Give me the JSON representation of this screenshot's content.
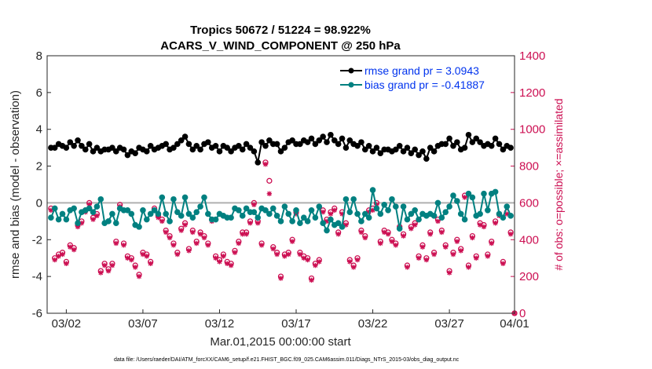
{
  "chart_data": {
    "type": "line",
    "title_line1": "Tropics 50672 / 51224 = 98.922%",
    "title_line2": "ACARS_V_WIND_COMPONENT @ 250 hPa",
    "xlabel": "Mar.01,2015 00:00:00 start",
    "ylabel": "rmse and bias (model - observation)",
    "y2label": "# of obs: o=possible; ×=assimilated",
    "footer": "data file: /Users/raeder/DAI/ATM_forcXX/CAM6_setup/f.e21.FHIST_BGC.f09_025.CAM6assim.011/Diags_NTrS_2015-03/obs_diag_output.nc",
    "xlim": [
      0.75,
      31.25
    ],
    "ylim": [
      -6,
      8
    ],
    "y2lim": [
      0,
      1400
    ],
    "x_ticks": [
      2,
      7,
      12,
      17,
      22,
      27,
      32
    ],
    "x_tick_labels": [
      "03/02",
      "03/07",
      "03/12",
      "03/17",
      "03/22",
      "03/27",
      "04/01"
    ],
    "y_ticks": [
      -6,
      -4,
      -2,
      0,
      2,
      4,
      6,
      8
    ],
    "y_tick_labels": [
      "-6",
      "-4",
      "-2",
      "0",
      "2",
      "4",
      "6",
      "8"
    ],
    "y2_ticks": [
      0,
      200,
      400,
      600,
      800,
      1000,
      1200,
      1400
    ],
    "y2_tick_labels": [
      "0",
      "200",
      "400",
      "600",
      "800",
      "1000",
      "1200",
      "1400"
    ],
    "zero_line": 0,
    "colors": {
      "rmse": "#000000",
      "bias": "#008080",
      "obs": "#cc0f52",
      "zero": "#b0b0b0",
      "legend_text": "#0033ee"
    },
    "legend": [
      {
        "name": "rmse grand pr = 3.0943",
        "series": "rmse"
      },
      {
        "name": "bias grand pr = -0.41887",
        "series": "bias"
      }
    ],
    "x": [
      1.0,
      1.25,
      1.5,
      1.75,
      2.0,
      2.25,
      2.5,
      2.75,
      3.0,
      3.25,
      3.5,
      3.75,
      4.0,
      4.25,
      4.5,
      4.75,
      5.0,
      5.25,
      5.5,
      5.75,
      6.0,
      6.25,
      6.5,
      6.75,
      7.0,
      7.25,
      7.5,
      7.75,
      8.0,
      8.25,
      8.5,
      8.75,
      9.0,
      9.25,
      9.5,
      9.75,
      10.0,
      10.25,
      10.5,
      10.75,
      11.0,
      11.25,
      11.5,
      11.75,
      12.0,
      12.25,
      12.5,
      12.75,
      13.0,
      13.25,
      13.5,
      13.75,
      14.0,
      14.25,
      14.5,
      14.75,
      15.0,
      15.25,
      15.5,
      15.75,
      16.0,
      16.25,
      16.5,
      16.75,
      17.0,
      17.25,
      17.5,
      17.75,
      18.0,
      18.25,
      18.5,
      18.75,
      19.0,
      19.25,
      19.5,
      19.75,
      20.0,
      20.25,
      20.5,
      20.75,
      21.0,
      21.25,
      21.5,
      21.75,
      22.0,
      22.25,
      22.5,
      22.75,
      23.0,
      23.25,
      23.5,
      23.75,
      24.0,
      24.25,
      24.5,
      24.75,
      25.0,
      25.25,
      25.5,
      25.75,
      26.0,
      26.25,
      26.5,
      26.75,
      27.0,
      27.25,
      27.5,
      27.75,
      28.0,
      28.25,
      28.5,
      28.75,
      29.0,
      29.25,
      29.5,
      29.75,
      30.0,
      30.25,
      30.5,
      30.75,
      31.0
    ],
    "series": [
      {
        "name": "rmse",
        "values": [
          3.0,
          3.0,
          3.2,
          3.1,
          3.0,
          3.3,
          3.1,
          3.4,
          3.1,
          2.9,
          3.2,
          2.8,
          3.0,
          2.8,
          2.9,
          2.9,
          3.0,
          2.8,
          3.0,
          2.9,
          2.6,
          2.8,
          2.7,
          3.0,
          2.9,
          2.8,
          3.1,
          2.9,
          3.0,
          3.1,
          3.2,
          2.9,
          3.0,
          3.2,
          3.4,
          3.6,
          3.2,
          2.9,
          3.1,
          2.9,
          3.2,
          3.3,
          3.0,
          3.1,
          2.8,
          3.1,
          3.0,
          2.8,
          3.0,
          3.1,
          2.9,
          3.2,
          3.0,
          2.8,
          2.2,
          3.3,
          3.1,
          3.4,
          3.2,
          3.2,
          2.8,
          3.0,
          3.3,
          3.4,
          3.2,
          3.2,
          3.4,
          3.3,
          3.5,
          3.2,
          3.4,
          3.6,
          3.3,
          3.7,
          3.4,
          3.2,
          3.5,
          3.0,
          3.4,
          3.2,
          3.1,
          3.3,
          2.9,
          3.1,
          2.8,
          3.0,
          2.7,
          2.9,
          2.9,
          2.8,
          2.9,
          3.1,
          2.8,
          3.0,
          2.7,
          2.9,
          2.6,
          2.8,
          2.4,
          3.0,
          2.8,
          3.1,
          3.2,
          3.2,
          3.5,
          3.1,
          3.3,
          2.9,
          3.0,
          3.7,
          3.3,
          3.5,
          3.3,
          3.1,
          3.2,
          3.1,
          3.5,
          3.2,
          2.9,
          3.1,
          3.0
        ]
      },
      {
        "name": "bias",
        "values": [
          -0.8,
          -0.3,
          -0.9,
          -0.6,
          -0.9,
          -0.4,
          -0.3,
          -1.1,
          -0.5,
          -0.4,
          -0.3,
          -0.5,
          -0.2,
          0.2,
          -1.1,
          -1.0,
          -0.6,
          -1.1,
          -0.3,
          -0.4,
          -0.4,
          -0.6,
          -1.2,
          -1.3,
          -0.4,
          -0.9,
          -0.6,
          -0.4,
          -0.6,
          0.3,
          -0.6,
          -1.0,
          0.2,
          -0.5,
          -0.7,
          0.3,
          -0.6,
          -0.8,
          -0.5,
          -0.2,
          0.3,
          -0.6,
          -0.9,
          -0.9,
          -0.6,
          -0.7,
          -0.8,
          -0.8,
          -0.3,
          -0.4,
          -0.7,
          -0.3,
          -0.5,
          -0.5,
          -0.8,
          -0.3,
          -0.4,
          -0.6,
          -0.3,
          -0.7,
          -1.0,
          -0.2,
          -0.6,
          -1.0,
          -0.4,
          -1.1,
          -0.8,
          -1.0,
          -0.4,
          -0.8,
          -0.2,
          -1.1,
          -1.5,
          -0.9,
          -1.2,
          -1.1,
          -1.3,
          0.2,
          -0.5,
          0.2,
          -0.6,
          -1.0,
          -0.6,
          -0.8,
          0.7,
          -0.3,
          -0.6,
          -0.1,
          -0.4,
          0.2,
          -0.2,
          -1.4,
          -0.2,
          -0.9,
          -0.6,
          -0.4,
          -0.9,
          -0.6,
          -0.7,
          -0.6,
          -0.7,
          0.0,
          -0.8,
          -0.5,
          -0.2,
          0.4,
          0.1,
          -0.6,
          -0.9,
          0.5,
          0.3,
          -0.7,
          -0.6,
          0.5,
          -0.4,
          0.5,
          0.6,
          -0.6,
          -0.8,
          -0.2,
          -0.7
        ]
      }
    ],
    "obs": {
      "possible": [
        570,
        300,
        320,
        330,
        280,
        370,
        355,
        480,
        500,
        560,
        600,
        520,
        540,
        230,
        270,
        240,
        270,
        390,
        590,
        380,
        310,
        300,
        260,
        210,
        330,
        320,
        280,
        570,
        530,
        510,
        450,
        420,
        380,
        330,
        460,
        490,
        350,
        450,
        390,
        440,
        420,
        380,
        510,
        310,
        290,
        320,
        280,
        270,
        340,
        390,
        440,
        440,
        500,
        600,
        500,
        380,
        820,
        720,
        360,
        330,
        200,
        320,
        330,
        400,
        550,
        330,
        310,
        300,
        190,
        270,
        290,
        560,
        510,
        550,
        570,
        440,
        550,
        490,
        290,
        260,
        300,
        450,
        420,
        560,
        570,
        600,
        390,
        450,
        440,
        400,
        380,
        470,
        430,
        260,
        470,
        490,
        310,
        370,
        300,
        440,
        330,
        510,
        450,
        370,
        230,
        330,
        400,
        350,
        640,
        260,
        420,
        310,
        490,
        480,
        320,
        390,
        500,
        540,
        280,
        550,
        440
      ],
      "assimilated": [
        560,
        290,
        310,
        320,
        270,
        360,
        345,
        470,
        490,
        550,
        590,
        510,
        530,
        220,
        260,
        230,
        260,
        380,
        580,
        370,
        300,
        290,
        250,
        200,
        320,
        310,
        270,
        560,
        520,
        500,
        440,
        410,
        370,
        320,
        450,
        480,
        340,
        440,
        380,
        430,
        410,
        370,
        500,
        300,
        280,
        310,
        270,
        260,
        330,
        380,
        430,
        430,
        490,
        590,
        490,
        370,
        810,
        650,
        350,
        320,
        190,
        310,
        320,
        390,
        540,
        320,
        300,
        290,
        180,
        260,
        280,
        550,
        500,
        540,
        560,
        430,
        540,
        480,
        280,
        250,
        290,
        440,
        410,
        550,
        560,
        590,
        380,
        440,
        430,
        390,
        370,
        460,
        420,
        250,
        460,
        480,
        300,
        360,
        290,
        430,
        320,
        500,
        440,
        360,
        220,
        320,
        390,
        340,
        630,
        250,
        410,
        300,
        480,
        470,
        310,
        380,
        490,
        530,
        270,
        540,
        430
      ]
    },
    "end_marker": {
      "x": 32,
      "possible": 0,
      "assimilated": 0
    }
  }
}
